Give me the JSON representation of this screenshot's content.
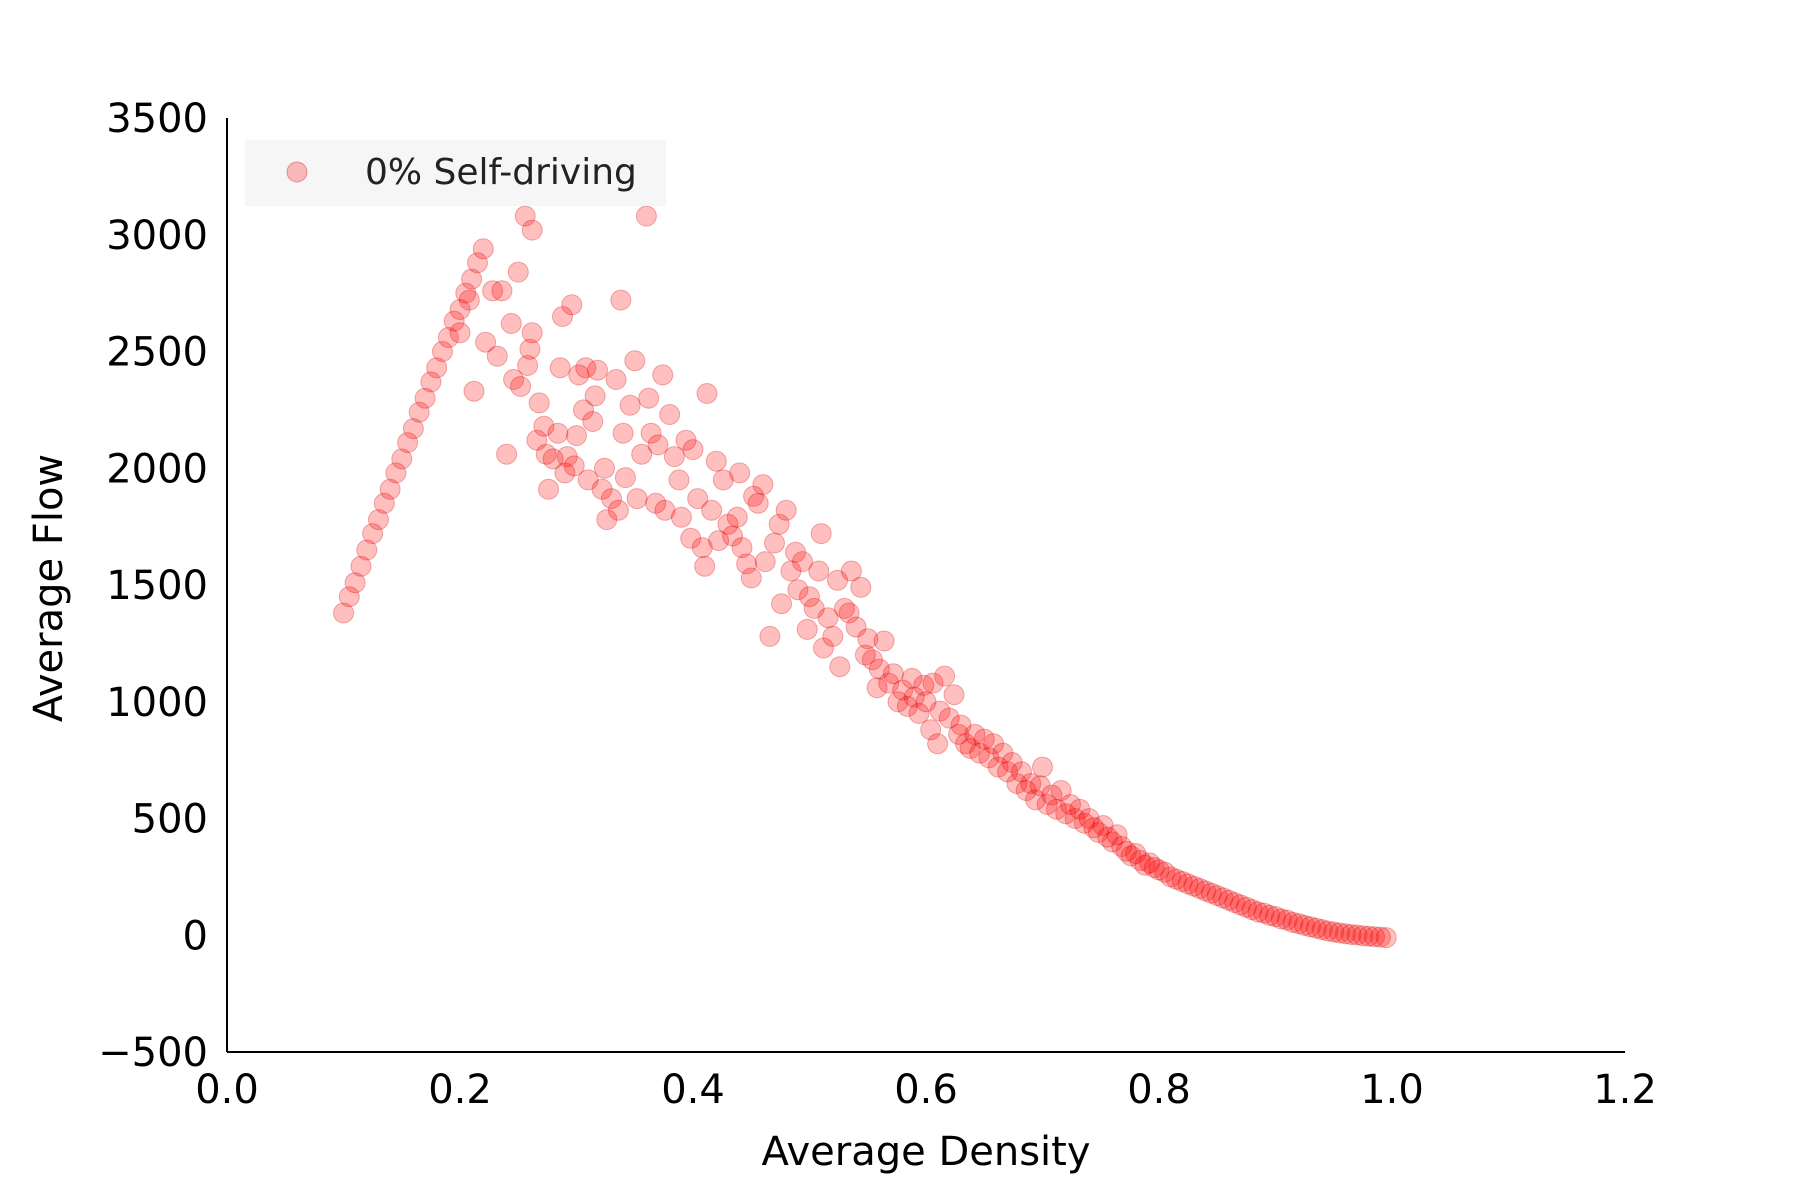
{
  "chart_data": {
    "type": "scatter",
    "title": "",
    "xlabel": "Average Density",
    "ylabel": "Average Flow",
    "xlim": [
      0.0,
      1.2
    ],
    "ylim": [
      -500,
      3500
    ],
    "xticks": [
      "0.0",
      "0.2",
      "0.4",
      "0.6",
      "0.8",
      "1.0",
      "1.2"
    ],
    "yticks": [
      "−500",
      "0",
      "500",
      "1000",
      "1500",
      "2000",
      "2500",
      "3000",
      "3500"
    ],
    "grid": false,
    "legend_position": "top-left",
    "series": [
      {
        "name": "0% Self-driving",
        "color": "#ff0000",
        "points": [
          [
            0.1,
            1380
          ],
          [
            0.105,
            1450
          ],
          [
            0.11,
            1510
          ],
          [
            0.115,
            1580
          ],
          [
            0.12,
            1650
          ],
          [
            0.125,
            1720
          ],
          [
            0.13,
            1780
          ],
          [
            0.135,
            1850
          ],
          [
            0.14,
            1910
          ],
          [
            0.145,
            1980
          ],
          [
            0.15,
            2040
          ],
          [
            0.155,
            2110
          ],
          [
            0.16,
            2170
          ],
          [
            0.165,
            2240
          ],
          [
            0.17,
            2300
          ],
          [
            0.175,
            2370
          ],
          [
            0.18,
            2430
          ],
          [
            0.185,
            2500
          ],
          [
            0.19,
            2560
          ],
          [
            0.195,
            2630
          ],
          [
            0.2,
            2680
          ],
          [
            0.205,
            2750
          ],
          [
            0.21,
            2810
          ],
          [
            0.215,
            2880
          ],
          [
            0.22,
            2940
          ],
          [
            0.2,
            2580
          ],
          [
            0.208,
            2720
          ],
          [
            0.212,
            2330
          ],
          [
            0.222,
            2540
          ],
          [
            0.228,
            2760
          ],
          [
            0.232,
            2480
          ],
          [
            0.236,
            2760
          ],
          [
            0.24,
            2060
          ],
          [
            0.244,
            2620
          ],
          [
            0.246,
            2380
          ],
          [
            0.25,
            2840
          ],
          [
            0.252,
            2350
          ],
          [
            0.256,
            3080
          ],
          [
            0.258,
            2440
          ],
          [
            0.26,
            2510
          ],
          [
            0.262,
            2580
          ],
          [
            0.262,
            3020
          ],
          [
            0.266,
            2120
          ],
          [
            0.268,
            2280
          ],
          [
            0.272,
            2180
          ],
          [
            0.274,
            2060
          ],
          [
            0.276,
            1910
          ],
          [
            0.28,
            2040
          ],
          [
            0.284,
            2150
          ],
          [
            0.286,
            2430
          ],
          [
            0.288,
            2650
          ],
          [
            0.29,
            1980
          ],
          [
            0.292,
            2050
          ],
          [
            0.296,
            2700
          ],
          [
            0.298,
            2010
          ],
          [
            0.3,
            2140
          ],
          [
            0.302,
            2400
          ],
          [
            0.306,
            2250
          ],
          [
            0.308,
            2430
          ],
          [
            0.31,
            1950
          ],
          [
            0.314,
            2200
          ],
          [
            0.316,
            2310
          ],
          [
            0.318,
            2420
          ],
          [
            0.322,
            1910
          ],
          [
            0.324,
            2000
          ],
          [
            0.326,
            1780
          ],
          [
            0.33,
            1870
          ],
          [
            0.334,
            2380
          ],
          [
            0.336,
            1820
          ],
          [
            0.338,
            2720
          ],
          [
            0.34,
            2150
          ],
          [
            0.342,
            1960
          ],
          [
            0.346,
            2270
          ],
          [
            0.35,
            2460
          ],
          [
            0.352,
            1870
          ],
          [
            0.356,
            2060
          ],
          [
            0.36,
            3080
          ],
          [
            0.362,
            2300
          ],
          [
            0.364,
            2150
          ],
          [
            0.368,
            1850
          ],
          [
            0.37,
            2100
          ],
          [
            0.374,
            2400
          ],
          [
            0.376,
            1820
          ],
          [
            0.38,
            2230
          ],
          [
            0.384,
            2050
          ],
          [
            0.388,
            1950
          ],
          [
            0.39,
            1790
          ],
          [
            0.394,
            2120
          ],
          [
            0.398,
            1700
          ],
          [
            0.4,
            2080
          ],
          [
            0.404,
            1870
          ],
          [
            0.408,
            1660
          ],
          [
            0.41,
            1580
          ],
          [
            0.412,
            2320
          ],
          [
            0.416,
            1820
          ],
          [
            0.42,
            2030
          ],
          [
            0.422,
            1690
          ],
          [
            0.426,
            1950
          ],
          [
            0.43,
            1760
          ],
          [
            0.434,
            1710
          ],
          [
            0.438,
            1790
          ],
          [
            0.44,
            1980
          ],
          [
            0.442,
            1660
          ],
          [
            0.446,
            1590
          ],
          [
            0.45,
            1530
          ],
          [
            0.452,
            1880
          ],
          [
            0.456,
            1850
          ],
          [
            0.46,
            1930
          ],
          [
            0.462,
            1600
          ],
          [
            0.466,
            1280
          ],
          [
            0.47,
            1680
          ],
          [
            0.474,
            1760
          ],
          [
            0.476,
            1420
          ],
          [
            0.48,
            1820
          ],
          [
            0.484,
            1560
          ],
          [
            0.488,
            1640
          ],
          [
            0.49,
            1480
          ],
          [
            0.494,
            1600
          ],
          [
            0.498,
            1310
          ],
          [
            0.5,
            1450
          ],
          [
            0.504,
            1400
          ],
          [
            0.508,
            1560
          ],
          [
            0.51,
            1720
          ],
          [
            0.512,
            1230
          ],
          [
            0.516,
            1360
          ],
          [
            0.52,
            1280
          ],
          [
            0.524,
            1520
          ],
          [
            0.526,
            1150
          ],
          [
            0.53,
            1400
          ],
          [
            0.534,
            1380
          ],
          [
            0.536,
            1560
          ],
          [
            0.54,
            1320
          ],
          [
            0.544,
            1490
          ],
          [
            0.548,
            1200
          ],
          [
            0.55,
            1270
          ],
          [
            0.554,
            1180
          ],
          [
            0.558,
            1060
          ],
          [
            0.56,
            1140
          ],
          [
            0.564,
            1260
          ],
          [
            0.568,
            1080
          ],
          [
            0.572,
            1120
          ],
          [
            0.576,
            1000
          ],
          [
            0.58,
            1050
          ],
          [
            0.584,
            980
          ],
          [
            0.588,
            1100
          ],
          [
            0.59,
            1020
          ],
          [
            0.594,
            950
          ],
          [
            0.598,
            1070
          ],
          [
            0.6,
            1000
          ],
          [
            0.604,
            880
          ],
          [
            0.606,
            1080
          ],
          [
            0.61,
            820
          ],
          [
            0.612,
            960
          ],
          [
            0.616,
            1110
          ],
          [
            0.62,
            930
          ],
          [
            0.624,
            1030
          ],
          [
            0.628,
            860
          ],
          [
            0.63,
            900
          ],
          [
            0.634,
            820
          ],
          [
            0.638,
            800
          ],
          [
            0.642,
            860
          ],
          [
            0.646,
            780
          ],
          [
            0.65,
            840
          ],
          [
            0.654,
            760
          ],
          [
            0.658,
            820
          ],
          [
            0.662,
            720
          ],
          [
            0.666,
            780
          ],
          [
            0.67,
            700
          ],
          [
            0.674,
            740
          ],
          [
            0.678,
            650
          ],
          [
            0.682,
            700
          ],
          [
            0.686,
            620
          ],
          [
            0.69,
            650
          ],
          [
            0.694,
            580
          ],
          [
            0.698,
            640
          ],
          [
            0.7,
            720
          ],
          [
            0.704,
            560
          ],
          [
            0.708,
            600
          ],
          [
            0.712,
            540
          ],
          [
            0.716,
            620
          ],
          [
            0.72,
            520
          ],
          [
            0.724,
            560
          ],
          [
            0.728,
            500
          ],
          [
            0.732,
            540
          ],
          [
            0.736,
            480
          ],
          [
            0.74,
            500
          ],
          [
            0.744,
            460
          ],
          [
            0.748,
            440
          ],
          [
            0.752,
            470
          ],
          [
            0.756,
            420
          ],
          [
            0.76,
            400
          ],
          [
            0.764,
            430
          ],
          [
            0.768,
            380
          ],
          [
            0.772,
            360
          ],
          [
            0.776,
            340
          ],
          [
            0.78,
            350
          ],
          [
            0.784,
            320
          ],
          [
            0.788,
            300
          ],
          [
            0.792,
            310
          ],
          [
            0.796,
            290
          ],
          [
            0.8,
            280
          ],
          [
            0.805,
            270
          ],
          [
            0.81,
            250
          ],
          [
            0.815,
            240
          ],
          [
            0.82,
            230
          ],
          [
            0.825,
            220
          ],
          [
            0.83,
            210
          ],
          [
            0.835,
            200
          ],
          [
            0.84,
            190
          ],
          [
            0.845,
            180
          ],
          [
            0.85,
            170
          ],
          [
            0.855,
            160
          ],
          [
            0.86,
            150
          ],
          [
            0.865,
            140
          ],
          [
            0.87,
            130
          ],
          [
            0.875,
            120
          ],
          [
            0.88,
            110
          ],
          [
            0.885,
            100
          ],
          [
            0.89,
            95
          ],
          [
            0.895,
            85
          ],
          [
            0.9,
            80
          ],
          [
            0.905,
            70
          ],
          [
            0.91,
            65
          ],
          [
            0.915,
            55
          ],
          [
            0.92,
            50
          ],
          [
            0.925,
            42
          ],
          [
            0.93,
            36
          ],
          [
            0.935,
            30
          ],
          [
            0.94,
            24
          ],
          [
            0.945,
            18
          ],
          [
            0.95,
            14
          ],
          [
            0.955,
            10
          ],
          [
            0.96,
            6
          ],
          [
            0.965,
            3
          ],
          [
            0.97,
            1
          ],
          [
            0.975,
            -2
          ],
          [
            0.98,
            -4
          ],
          [
            0.985,
            -6
          ],
          [
            0.99,
            -8
          ],
          [
            0.995,
            -10
          ]
        ]
      }
    ]
  }
}
